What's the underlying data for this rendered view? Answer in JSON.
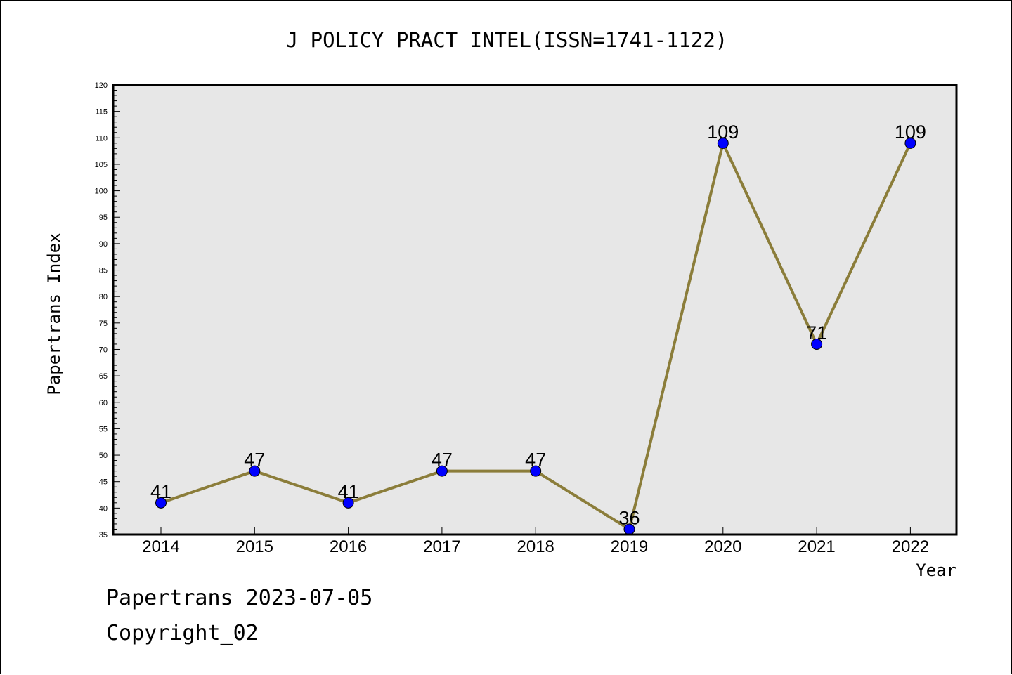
{
  "chart_data": {
    "type": "line",
    "title": "J POLICY PRACT INTEL(ISSN=1741-1122)",
    "xlabel": "Year",
    "ylabel": "Papertrans Index",
    "categories": [
      "2014",
      "2015",
      "2016",
      "2017",
      "2018",
      "2019",
      "2020",
      "2021",
      "2022"
    ],
    "series": [
      {
        "values": [
          41,
          47,
          41,
          47,
          47,
          36,
          109,
          71,
          109
        ]
      }
    ],
    "ylim": [
      35,
      120
    ],
    "ytick_step": 5,
    "grid": false,
    "colors": {
      "plot_background": "#e7e7e7",
      "line": "#8b7d3a",
      "marker": "#0000ff",
      "axes": "#000000"
    }
  },
  "footer": {
    "line1": "Papertrans 2023-07-05",
    "line2": "Copyright_02"
  }
}
